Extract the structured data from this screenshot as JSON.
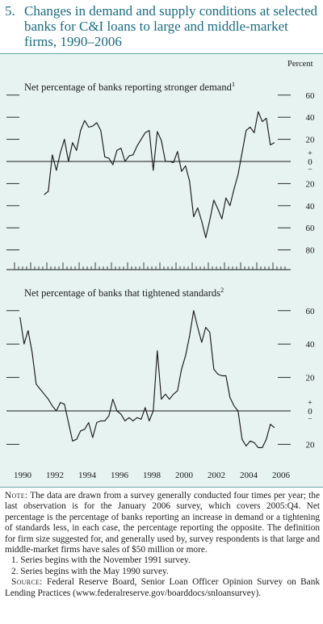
{
  "figure": {
    "number": "5.",
    "title": "Changes in demand and supply conditions at selected banks for C&I loans to large and middle-market firms, 1990–2006"
  },
  "units_label": "Percent",
  "colors": {
    "panel_bg": "#e6f3f0",
    "line": "#1a1a1a",
    "title_blue": "#1a6b82",
    "border": "#6aa7a0"
  },
  "notes": {
    "note_label": "Note:",
    "note_text": "The data are drawn from a survey generally conducted four times per year; the last observation is for the January 2006 survey, which covers 2005:Q4. Net percentage is the percentage of banks reporting an increase in demand or a tightening of standards less, in each case, the percentage reporting the opposite. The definition for firm size suggested for, and generally used by, survey respondents is that large and middle-market firms have sales of $50 million or more.",
    "footnote1": "1. Series begins with the November 1991 survey.",
    "footnote2": "2. Series begins with the May 1990 survey.",
    "source_label": "Source:",
    "source_text": "Federal Reserve Board, Senior Loan Officer Opinion Survey on Bank Lending Practices (www.federalreserve.gov/boarddocs/snloansurvey)."
  },
  "chart_data": [
    {
      "type": "line",
      "title": "Net percentage of banks reporting stronger demand",
      "title_superscript": "1",
      "ylim": [
        -90,
        70
      ],
      "yticks": [
        {
          "v": 60,
          "label": "60"
        },
        {
          "v": 40,
          "label": "40"
        },
        {
          "v": 20,
          "label": "20"
        },
        {
          "v": -20,
          "label": "20"
        },
        {
          "v": -40,
          "label": "40"
        },
        {
          "v": -60,
          "label": "60"
        },
        {
          "v": -80,
          "label": "80"
        }
      ],
      "zero_label_plus": "+",
      "zero_label": "0",
      "zero_label_minus": "−",
      "series": [
        {
          "x": [
            1991.84,
            1992.09,
            1992.34,
            1992.59,
            1992.84,
            1993.09,
            1993.34,
            1993.59,
            1993.84,
            1994.09,
            1994.34,
            1994.59,
            1994.84,
            1995.09,
            1995.34,
            1995.59,
            1995.84,
            1996.09,
            1996.34,
            1996.59,
            1996.84,
            1997.09,
            1997.34,
            1997.59,
            1997.84,
            1998.09,
            1998.34,
            1998.59,
            1998.84,
            1999.09,
            1999.34,
            1999.59,
            1999.84,
            2000.09,
            2000.34,
            2000.59,
            2000.84,
            2001.09,
            2001.34,
            2001.59,
            2001.84,
            2002.09,
            2002.34,
            2002.59,
            2002.84,
            2003.09,
            2003.34,
            2003.59,
            2003.84,
            2004.09,
            2004.34,
            2004.59,
            2004.84,
            2005.09,
            2005.34,
            2005.59,
            2005.84,
            2006.09
          ],
          "y": [
            -30,
            -27,
            6,
            -8,
            8,
            20,
            0,
            17,
            10,
            28,
            37,
            31,
            32,
            35,
            28,
            4,
            3,
            -3,
            10,
            12,
            0,
            5,
            6,
            14,
            20,
            26,
            28,
            -8,
            27,
            19,
            0,
            0,
            -1,
            9,
            -9,
            -4,
            -18,
            -50,
            -42,
            -54,
            -69,
            -53,
            -35,
            -43,
            -52,
            -33,
            -40,
            -25,
            -12,
            8,
            28,
            31,
            26,
            45,
            36,
            39,
            15,
            17
          ]
        }
      ]
    },
    {
      "type": "line",
      "title": "Net percentage of banks that tightened standards",
      "title_superscript": "2",
      "ylim": [
        -30,
        70
      ],
      "yticks": [
        {
          "v": 60,
          "label": "60"
        },
        {
          "v": 40,
          "label": "40"
        },
        {
          "v": 20,
          "label": "20"
        },
        {
          "v": -20,
          "label": "20"
        }
      ],
      "zero_label_plus": "+",
      "zero_label": "0",
      "zero_label_minus": "−",
      "series": [
        {
          "x": [
            1990.34,
            1990.59,
            1990.84,
            1991.09,
            1991.34,
            1991.59,
            1991.84,
            1992.09,
            1992.34,
            1992.59,
            1992.84,
            1993.09,
            1993.34,
            1993.59,
            1993.84,
            1994.09,
            1994.34,
            1994.59,
            1994.84,
            1995.09,
            1995.34,
            1995.59,
            1995.84,
            1996.09,
            1996.34,
            1996.59,
            1996.84,
            1997.09,
            1997.34,
            1997.59,
            1997.84,
            1998.09,
            1998.34,
            1998.59,
            1998.84,
            1999.09,
            1999.34,
            1999.59,
            1999.84,
            2000.09,
            2000.34,
            2000.59,
            2000.84,
            2001.09,
            2001.34,
            2001.59,
            2001.84,
            2002.09,
            2002.34,
            2002.59,
            2002.84,
            2003.09,
            2003.34,
            2003.59,
            2003.84,
            2004.09,
            2004.34,
            2004.59,
            2004.84,
            2005.09,
            2005.34,
            2005.59,
            2005.84,
            2006.09
          ],
          "y": [
            56,
            40,
            48,
            35,
            16,
            13,
            10,
            7,
            3,
            0,
            5,
            4,
            -7,
            -18,
            -17,
            -12,
            -11,
            -7,
            -16,
            -7,
            -6,
            -6,
            -3,
            7,
            0,
            -2,
            -6,
            -4,
            -6,
            -4,
            -5,
            2,
            -6,
            0,
            36,
            7,
            10,
            7,
            10,
            12,
            25,
            33,
            45,
            60,
            50,
            41,
            50,
            47,
            25,
            22,
            21,
            21,
            8,
            3,
            0,
            -17,
            -21,
            -18,
            -19,
            -22,
            -22,
            -17,
            -8,
            -10
          ]
        }
      ]
    }
  ],
  "x_axis": {
    "xlim": [
      1989.5,
      2007.1
    ],
    "tick_labels": [
      "1990",
      "1992",
      "1994",
      "1996",
      "1998",
      "2000",
      "2002",
      "2004",
      "2006"
    ]
  }
}
